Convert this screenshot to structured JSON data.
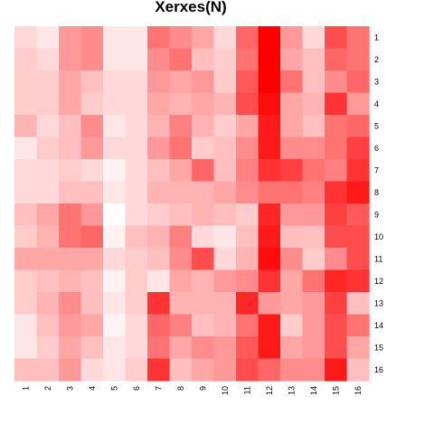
{
  "chart_data": {
    "type": "heatmap",
    "title": "Xerxes(N)",
    "x_labels": [
      "1",
      "2",
      "3",
      "4",
      "5",
      "6",
      "7",
      "8",
      "9",
      "10",
      "11",
      "12",
      "13",
      "14",
      "15",
      "16"
    ],
    "y_labels": [
      "1",
      "2",
      "3",
      "4",
      "5",
      "6",
      "7",
      "8",
      "9",
      "10",
      "11",
      "12",
      "13",
      "14",
      "15",
      "16"
    ],
    "value_range": [
      0,
      1
    ],
    "color_low": "#ffffff",
    "color_high": "#ff0000",
    "values": [
      [
        0.15,
        0.1,
        0.4,
        0.45,
        0.1,
        0.1,
        0.55,
        0.45,
        0.35,
        0.15,
        0.6,
        1.0,
        0.4,
        0.15,
        0.7,
        0.55
      ],
      [
        0.2,
        0.15,
        0.4,
        0.45,
        0.1,
        0.1,
        0.45,
        0.55,
        0.25,
        0.2,
        0.55,
        1.0,
        0.35,
        0.25,
        0.6,
        0.55
      ],
      [
        0.2,
        0.2,
        0.35,
        0.25,
        0.15,
        0.15,
        0.4,
        0.35,
        0.4,
        0.2,
        0.65,
        1.0,
        0.55,
        0.25,
        0.45,
        0.6
      ],
      [
        0.2,
        0.2,
        0.35,
        0.2,
        0.15,
        0.15,
        0.35,
        0.3,
        0.35,
        0.3,
        0.7,
        0.95,
        0.35,
        0.3,
        0.8,
        0.4
      ],
      [
        0.3,
        0.15,
        0.25,
        0.45,
        0.1,
        0.15,
        0.3,
        0.5,
        0.3,
        0.2,
        0.35,
        0.9,
        0.35,
        0.25,
        0.55,
        0.6
      ],
      [
        0.1,
        0.2,
        0.25,
        0.4,
        0.15,
        0.15,
        0.4,
        0.55,
        0.2,
        0.25,
        0.45,
        0.9,
        0.45,
        0.45,
        0.55,
        0.75
      ],
      [
        0.15,
        0.15,
        0.2,
        0.15,
        0.05,
        0.15,
        0.25,
        0.35,
        0.6,
        0.25,
        0.5,
        0.8,
        0.75,
        0.55,
        0.5,
        0.8
      ],
      [
        0.15,
        0.15,
        0.25,
        0.25,
        0.1,
        0.15,
        0.3,
        0.3,
        0.3,
        0.35,
        0.45,
        0.55,
        0.55,
        0.5,
        0.8,
        0.9
      ],
      [
        0.25,
        0.35,
        0.55,
        0.4,
        0.0,
        0.15,
        0.2,
        0.25,
        0.3,
        0.25,
        0.2,
        0.85,
        0.4,
        0.4,
        0.75,
        0.65
      ],
      [
        0.2,
        0.3,
        0.55,
        0.6,
        0.05,
        0.25,
        0.3,
        0.5,
        0.15,
        0.1,
        0.25,
        0.9,
        0.25,
        0.25,
        0.7,
        0.7
      ],
      [
        0.35,
        0.35,
        0.35,
        0.35,
        0.15,
        0.2,
        0.25,
        0.45,
        0.7,
        0.15,
        0.3,
        0.95,
        0.45,
        0.2,
        0.45,
        0.7
      ],
      [
        0.2,
        0.25,
        0.3,
        0.25,
        0.05,
        0.2,
        0.1,
        0.35,
        0.3,
        0.4,
        0.45,
        0.8,
        0.35,
        0.55,
        0.85,
        0.8
      ],
      [
        0.2,
        0.3,
        0.45,
        0.25,
        0.1,
        0.2,
        0.8,
        0.3,
        0.3,
        0.3,
        0.85,
        0.4,
        0.35,
        0.4,
        0.75,
        0.25
      ],
      [
        0.1,
        0.25,
        0.4,
        0.35,
        0.05,
        0.15,
        0.6,
        0.5,
        0.25,
        0.3,
        0.55,
        0.9,
        0.2,
        0.4,
        0.7,
        0.55
      ],
      [
        0.1,
        0.2,
        0.35,
        0.25,
        0.1,
        0.15,
        0.55,
        0.35,
        0.45,
        0.4,
        0.65,
        0.9,
        0.35,
        0.4,
        0.7,
        0.35
      ],
      [
        0.25,
        0.25,
        0.4,
        0.15,
        0.1,
        0.2,
        0.8,
        0.25,
        0.35,
        0.4,
        0.7,
        0.6,
        0.45,
        0.45,
        0.9,
        0.25
      ]
    ]
  }
}
